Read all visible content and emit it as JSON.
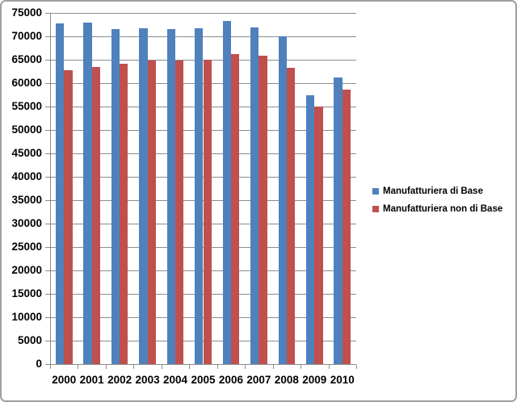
{
  "chart_data": {
    "type": "bar",
    "title": "",
    "xlabel": "",
    "ylabel": "",
    "categories": [
      "2000",
      "2001",
      "2002",
      "2003",
      "2004",
      "2005",
      "2006",
      "2007",
      "2008",
      "2009",
      "2010"
    ],
    "series": [
      {
        "name": "Manufatturiera di Base",
        "key": "di-base",
        "color": "#4f81bd",
        "values": [
          72700,
          73000,
          71600,
          71800,
          71500,
          71700,
          73300,
          71900,
          70000,
          57500,
          61200
        ]
      },
      {
        "name": "Manufatturiera non di Base",
        "key": "non-di-base",
        "color": "#c0504d",
        "values": [
          62700,
          63500,
          64100,
          64800,
          64900,
          65000,
          66200,
          65900,
          63200,
          55000,
          58700
        ]
      }
    ],
    "ylim": [
      0,
      75000
    ],
    "y_ticks": [
      0,
      5000,
      10000,
      15000,
      20000,
      25000,
      30000,
      35000,
      40000,
      45000,
      50000,
      55000,
      60000,
      65000,
      70000,
      75000
    ],
    "grid": true,
    "gridline_color": "#8c8c8c",
    "legend_position": "right",
    "background": "#ffffff"
  }
}
